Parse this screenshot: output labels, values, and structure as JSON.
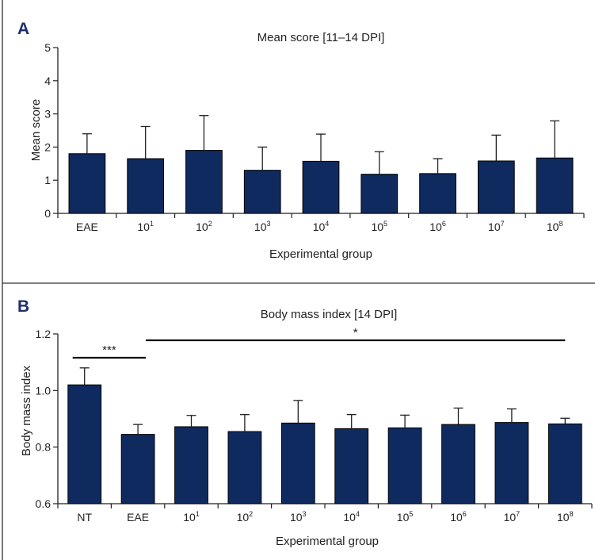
{
  "chart_data": [
    {
      "panel": "A",
      "type": "bar",
      "title": "Mean score [11–14 DPI]",
      "xlabel": "Experimental group",
      "ylabel": "Mean score",
      "ylim": [
        0,
        5
      ],
      "yticks": [
        "0",
        "1",
        "2",
        "3",
        "4",
        "5"
      ],
      "categories": [
        {
          "base": "EAE",
          "exp": ""
        },
        {
          "base": "10",
          "exp": "1"
        },
        {
          "base": "10",
          "exp": "2"
        },
        {
          "base": "10",
          "exp": "3"
        },
        {
          "base": "10",
          "exp": "4"
        },
        {
          "base": "10",
          "exp": "5"
        },
        {
          "base": "10",
          "exp": "6"
        },
        {
          "base": "10",
          "exp": "7"
        },
        {
          "base": "10",
          "exp": "8"
        }
      ],
      "values": [
        1.8,
        1.65,
        1.9,
        1.3,
        1.57,
        1.18,
        1.2,
        1.58,
        1.67
      ],
      "errors": [
        0.6,
        0.97,
        1.05,
        0.7,
        0.82,
        0.68,
        0.45,
        0.78,
        1.12
      ],
      "bar_color": "#0f2a5f",
      "grid": false
    },
    {
      "panel": "B",
      "type": "bar",
      "title": "Body mass index [14 DPI]",
      "xlabel": "Experimental group",
      "ylabel": "Body mass index",
      "ylim": [
        0.6,
        1.2
      ],
      "yticks": [
        "0.6",
        "0.8",
        "1.0",
        "1.2"
      ],
      "categories": [
        {
          "base": "NT",
          "exp": ""
        },
        {
          "base": "EAE",
          "exp": ""
        },
        {
          "base": "10",
          "exp": "1"
        },
        {
          "base": "10",
          "exp": "2"
        },
        {
          "base": "10",
          "exp": "3"
        },
        {
          "base": "10",
          "exp": "4"
        },
        {
          "base": "10",
          "exp": "5"
        },
        {
          "base": "10",
          "exp": "6"
        },
        {
          "base": "10",
          "exp": "7"
        },
        {
          "base": "10",
          "exp": "8"
        }
      ],
      "values": [
        1.02,
        0.845,
        0.872,
        0.855,
        0.885,
        0.865,
        0.868,
        0.88,
        0.887,
        0.882
      ],
      "errors": [
        0.06,
        0.035,
        0.04,
        0.06,
        0.08,
        0.05,
        0.045,
        0.058,
        0.048,
        0.02
      ],
      "bar_color": "#0f2a5f",
      "grid": false,
      "significance": [
        {
          "label": "***",
          "from": 0,
          "to": 1
        },
        {
          "label": "*",
          "from": 1,
          "to": 9
        }
      ]
    }
  ]
}
